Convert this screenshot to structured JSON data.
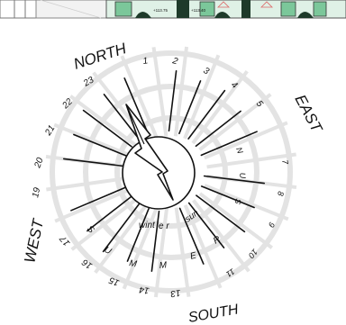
{
  "directions": {
    "north": "NORTH",
    "east": "EAST",
    "south": "SOUTH",
    "west": "WEST"
  },
  "hours": [
    "1",
    "2",
    "3",
    "4",
    "5",
    "7",
    "8",
    "9",
    "10",
    "11",
    "13",
    "14",
    "15",
    "16",
    "17",
    "19",
    "20",
    "21",
    "22",
    "23"
  ],
  "season_words": {
    "summer": [
      "S",
      "U",
      "M",
      "M",
      "E",
      "R"
    ],
    "winter": "wint",
    "winter_end": "e r",
    "sun": "sun",
    "summer_east": [
      "N",
      "U",
      "S"
    ]
  },
  "plan_strip": {
    "elevation_left": "+113.75",
    "elevation_right": "+113.40"
  },
  "colors": {
    "ink": "#111111",
    "faint_rings": "#e3e3e3",
    "plan_green": "#7bc79a",
    "plan_dark": "#1e3a2a"
  }
}
